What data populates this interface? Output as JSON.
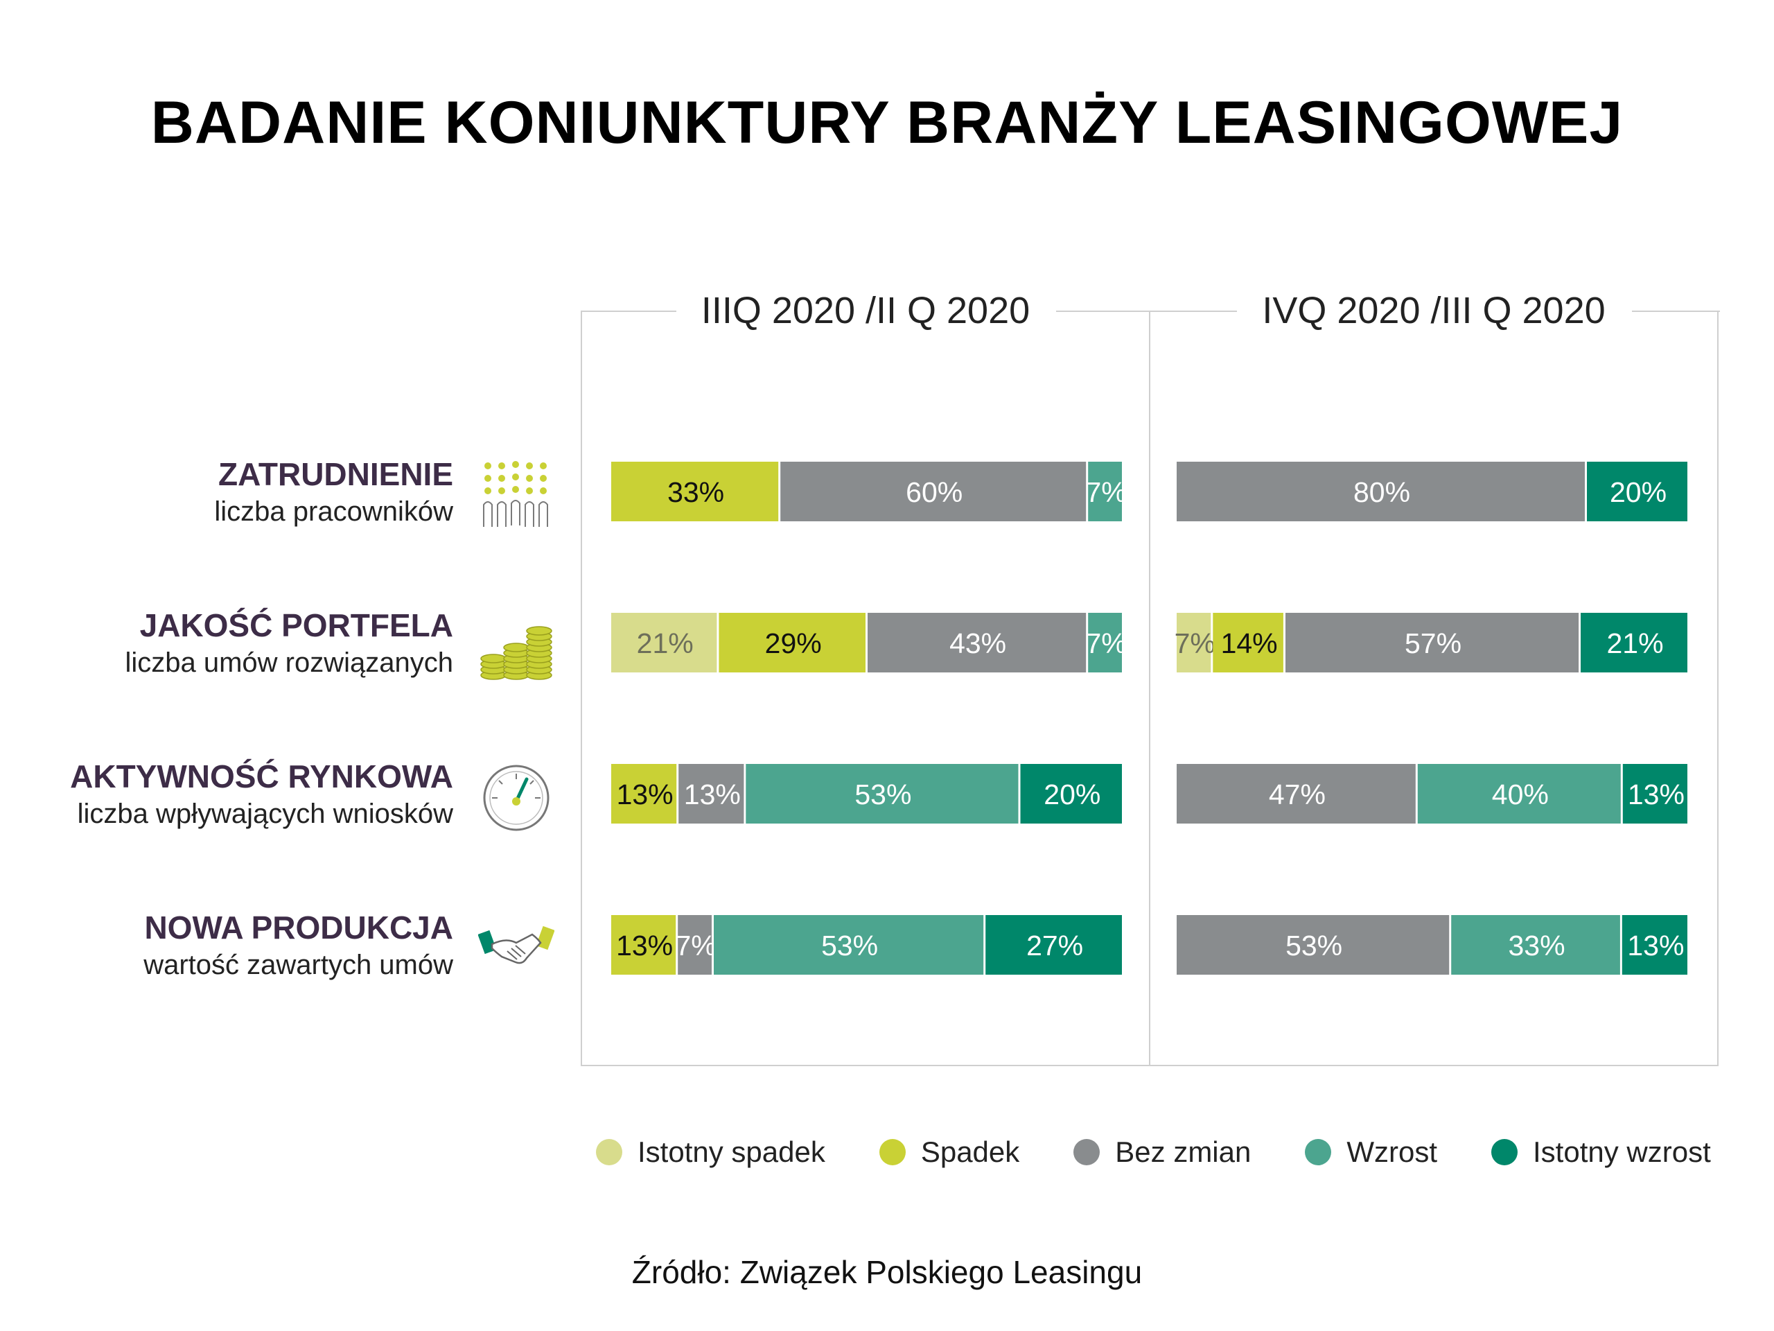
{
  "title": "BADANIE KONIUNKTURY BRANŻY LEASINGOWEJ",
  "source": "Źródło: Związek Polskiego Leasingu",
  "rows": [
    {
      "title": "ZATRUDNIENIE",
      "subtitle": "liczba pracowników",
      "icon": "people-group-icon"
    },
    {
      "title": "JAKOŚĆ PORTFELA",
      "subtitle": "liczba umów rozwiązanych",
      "icon": "coin-stacks-icon"
    },
    {
      "title": "AKTYWNOŚĆ RYNKOWA",
      "subtitle": "liczba wpływających wniosków",
      "icon": "speedometer-icon"
    },
    {
      "title": "NOWA PRODUKCJA",
      "subtitle": "wartość zawartych umów",
      "icon": "handshake-icon"
    }
  ],
  "colors": {
    "istotny_spadek": "#d8dc8c",
    "spadek": "#c9d135",
    "bez_zmian": "#898c8e",
    "wzrost": "#4ca58f",
    "istotny_wzrost": "#00876a",
    "title_purple": "#3d2c47"
  },
  "legend": [
    {
      "label": "Istotny spadek",
      "color": "#d8dc8c"
    },
    {
      "label": "Spadek",
      "color": "#c9d135"
    },
    {
      "label": "Bez zmian",
      "color": "#898c8e"
    },
    {
      "label": "Wzrost",
      "color": "#4ca58f"
    },
    {
      "label": "Istotny wzrost",
      "color": "#00876a"
    }
  ],
  "chart_data": {
    "type": "bar",
    "orientation": "horizontal",
    "stacked": true,
    "unit": "%",
    "categories": [
      "ZATRUDNIENIE",
      "JAKOŚĆ PORTFELA",
      "AKTYWNOŚĆ RYNKOWA",
      "NOWA PRODUKCJA"
    ],
    "panels": [
      {
        "name": "IIIQ 2020 /II Q 2020",
        "series": [
          {
            "name": "Istotny spadek",
            "values": [
              0,
              21,
              0,
              0
            ]
          },
          {
            "name": "Spadek",
            "values": [
              33,
              29,
              13,
              13
            ]
          },
          {
            "name": "Bez zmian",
            "values": [
              60,
              43,
              13,
              7
            ]
          },
          {
            "name": "Wzrost",
            "values": [
              7,
              7,
              53,
              53
            ]
          },
          {
            "name": "Istotny wzrost",
            "values": [
              0,
              0,
              20,
              27
            ]
          }
        ]
      },
      {
        "name": "IVQ 2020 /III Q 2020",
        "series": [
          {
            "name": "Istotny spadek",
            "values": [
              0,
              7,
              0,
              0
            ]
          },
          {
            "name": "Spadek",
            "values": [
              0,
              14,
              0,
              0
            ]
          },
          {
            "name": "Bez zmian",
            "values": [
              80,
              57,
              47,
              53
            ]
          },
          {
            "name": "Wzrost",
            "values": [
              0,
              0,
              40,
              33
            ]
          },
          {
            "name": "Istotny wzrost",
            "values": [
              20,
              21,
              13,
              13
            ]
          }
        ]
      }
    ]
  }
}
